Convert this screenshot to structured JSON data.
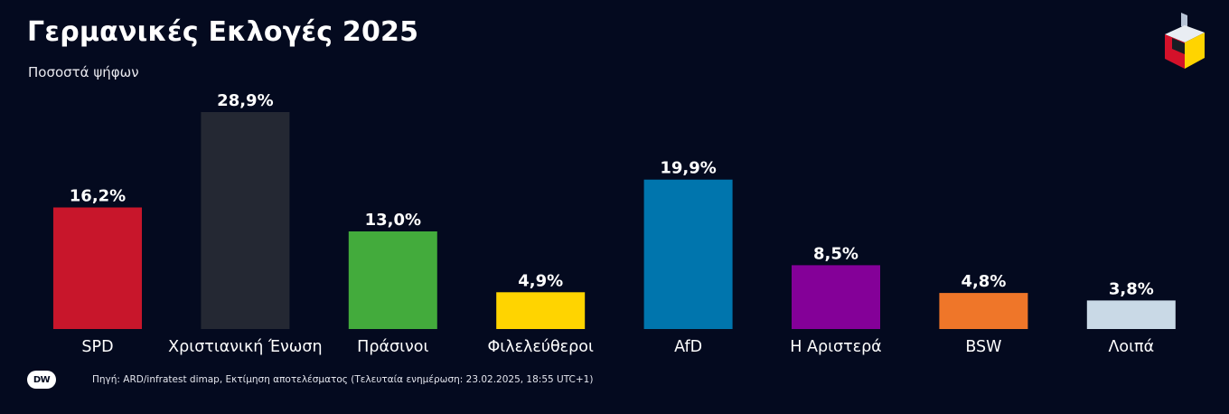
{
  "header": {
    "title": "Γερμανικές Εκλογές 2025",
    "subtitle": "Ποσοστά ψήφων"
  },
  "chart_data": {
    "type": "bar",
    "title": "Γερμανικές Εκλογές 2025",
    "subtitle": "Ποσοστά ψήφων",
    "categories": [
      "SPD",
      "Χριστιανική Ένωση",
      "Πράσινοι",
      "Φιλελεύθεροι",
      "AfD",
      "Η Αριστερά",
      "BSW",
      "Λοιπά"
    ],
    "values": [
      16.2,
      28.9,
      13.0,
      4.9,
      19.9,
      8.5,
      4.8,
      3.8
    ],
    "value_labels": [
      "16,2%",
      "28,9%",
      "13,0%",
      "4,9%",
      "19,9%",
      "8,5%",
      "4,8%",
      "3,8%"
    ],
    "colors": [
      "#c8162b",
      "#242833",
      "#43ab3c",
      "#ffd400",
      "#0075ad",
      "#840098",
      "#ef7629",
      "#c9d9e6"
    ],
    "unit": "%",
    "ylim": [
      0,
      28.9
    ],
    "grid": false,
    "legend": "none"
  },
  "footer": {
    "logo_text": "DW",
    "source": "Πηγή: ARD/infratest dimap, Εκτίμηση αποτελέσματος (Τελευταία ενημέρωση: 23.02.2025, 18:55 UTC+1)"
  },
  "icons": {
    "brand_logo": "ballot-box-icon",
    "footer_logo": "dw-logo-icon"
  }
}
